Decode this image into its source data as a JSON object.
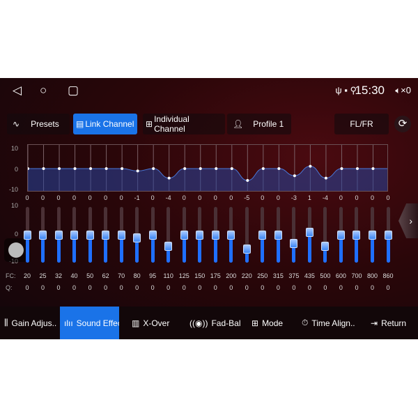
{
  "status": {
    "time": "15:30",
    "volume": "×0",
    "icons": [
      "usb-icon",
      "sim-icon",
      "location-icon"
    ]
  },
  "tabs": [
    {
      "label": "Presets",
      "icon": "pulse-icon"
    },
    {
      "label": "Link Channel",
      "icon": "link-channel-icon",
      "active": true
    },
    {
      "label": "Individual Channel",
      "icon": "grid-icon"
    },
    {
      "label": "Profile 1",
      "icon": "users-icon"
    }
  ],
  "channel": "FL/FR",
  "graph_axis": [
    "10",
    "0",
    "-10"
  ],
  "slider_axis": [
    "10",
    "0",
    "-10"
  ],
  "fc_label": "FC:",
  "q_label": "Q:",
  "bands": {
    "fc": [
      "20",
      "25",
      "32",
      "40",
      "50",
      "62",
      "70",
      "80",
      "95",
      "110",
      "125",
      "150",
      "175",
      "200",
      "220",
      "250",
      "315",
      "375",
      "435",
      "500",
      "600",
      "700",
      "800",
      "860"
    ],
    "gain": [
      0,
      0,
      0,
      0,
      0,
      0,
      0,
      -1,
      0,
      -4,
      0,
      0,
      0,
      0,
      -5,
      0,
      0,
      -3,
      1,
      -4,
      0,
      0,
      0,
      0
    ],
    "q": [
      "0",
      "0",
      "0",
      "0",
      "0",
      "0",
      "0",
      "0",
      "0",
      "0",
      "0",
      "0",
      "0",
      "0",
      "0",
      "0",
      "0",
      "0",
      "0",
      "0",
      "0",
      "0",
      "0",
      "0"
    ]
  },
  "bottom_tabs": [
    {
      "label": "Gain Adjus..",
      "icon": "sliders-icon"
    },
    {
      "label": "Sound Effec",
      "icon": "waveform-icon",
      "active": true
    },
    {
      "label": "X-Over",
      "icon": "bars-icon"
    },
    {
      "label": "Fad-Bal",
      "icon": "speaker-icon"
    },
    {
      "label": "Mode",
      "icon": "mode-icon"
    },
    {
      "label": "Time Align..",
      "icon": "timer-icon"
    },
    {
      "label": "Return",
      "icon": "return-icon"
    }
  ],
  "accent": "#1a73e8"
}
